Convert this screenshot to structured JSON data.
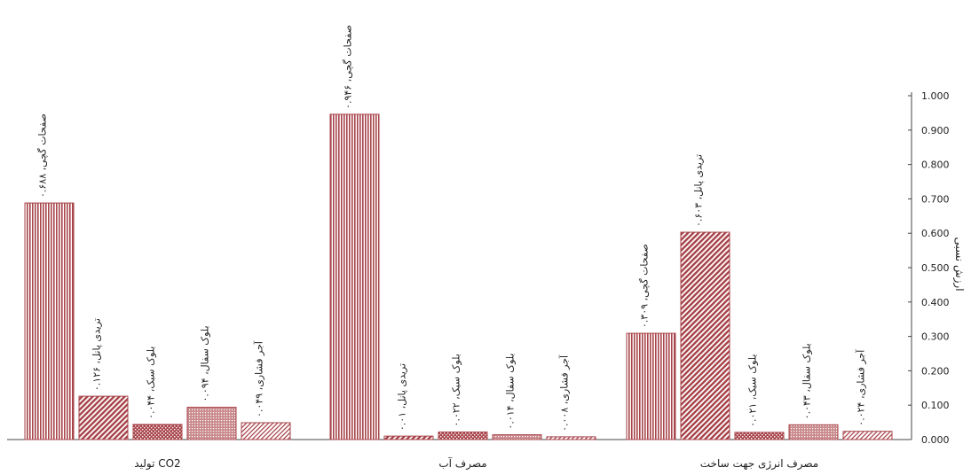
{
  "chart_data": {
    "type": "bar",
    "ylabel": "ارزش نسبی",
    "ylim": [
      0,
      1
    ],
    "yticks": [
      "1.000",
      "0.900",
      "0.800",
      "0.700",
      "0.600",
      "0.500",
      "0.400",
      "0.300",
      "0.200",
      "0.100",
      "0.000"
    ],
    "y_axis_side": "right",
    "bar_color": "#a8454b",
    "groups": [
      {
        "category": "تولید CO2",
        "bars": [
          {
            "label": "صفحات گچی، ۰.۶۸۸",
            "value": 0.688,
            "pattern": "vertical"
          },
          {
            "label": "تریدی پانل، ۰.۱۲۶",
            "value": 0.126,
            "pattern": "diagonal"
          },
          {
            "label": "بلوک سبک، ۰.۰۴۴",
            "value": 0.044,
            "pattern": "dots"
          },
          {
            "label": "بلوک سفال، ۰.۰۹۴",
            "value": 0.094,
            "pattern": "fine"
          },
          {
            "label": "آجر فشاری، ۰.۰۴۹",
            "value": 0.049,
            "pattern": "stripes"
          }
        ]
      },
      {
        "category": "مصرف آب",
        "bars": [
          {
            "label": "صفحات گچی، ۰.۹۴۶",
            "value": 0.946,
            "pattern": "vertical"
          },
          {
            "label": "تریدی پانل، ۰.۰۱",
            "value": 0.01,
            "pattern": "diagonal"
          },
          {
            "label": "بلوک سبک، ۰.۰۲۲",
            "value": 0.022,
            "pattern": "dots"
          },
          {
            "label": "بلوک سفال، ۰.۰۱۴",
            "value": 0.014,
            "pattern": "fine"
          },
          {
            "label": "آجر فشاری، ۰.۰۰۸",
            "value": 0.008,
            "pattern": "stripes"
          }
        ]
      },
      {
        "category": "مصرف انرژی جهت ساخت",
        "bars": [
          {
            "label": "صفحات گچی، ۰.۳۰۹",
            "value": 0.309,
            "pattern": "vertical"
          },
          {
            "label": "تریدی پانل، ۰.۶۰۳",
            "value": 0.603,
            "pattern": "diagonal"
          },
          {
            "label": "بلوک سبک، ۰.۰۲۱",
            "value": 0.021,
            "pattern": "dots"
          },
          {
            "label": "بلوک سفال، ۰.۰۴۳",
            "value": 0.043,
            "pattern": "fine"
          },
          {
            "label": "آجر فشاری، ۰.۰۲۴",
            "value": 0.024,
            "pattern": "stripes"
          }
        ]
      }
    ]
  }
}
